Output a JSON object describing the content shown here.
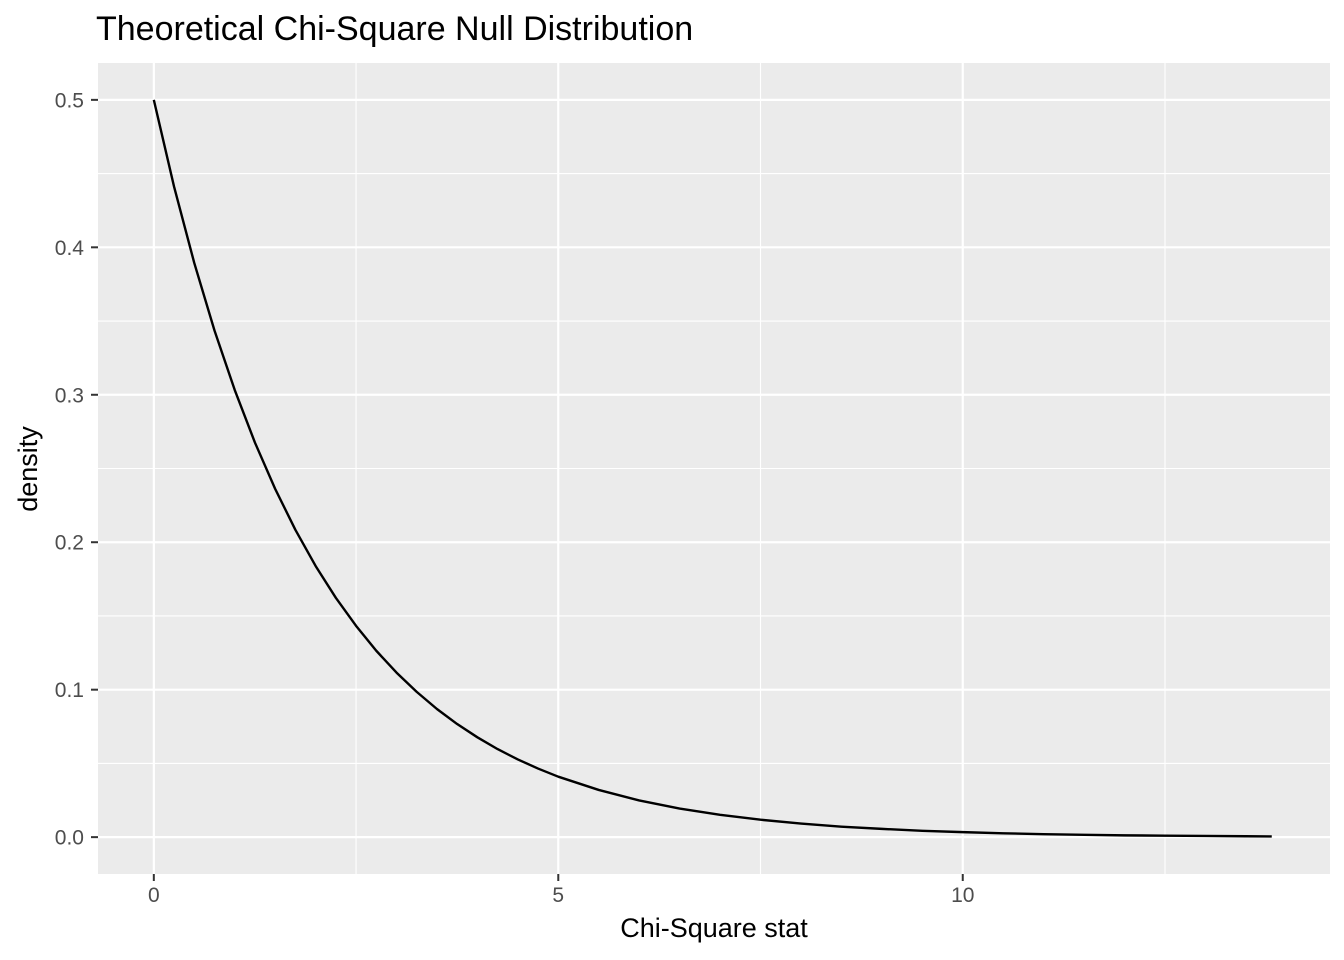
{
  "chart_data": {
    "type": "line",
    "title": "Theoretical Chi-Square Null Distribution",
    "xlabel": "Chi-Square stat",
    "ylabel": "density",
    "xlim": [
      -0.69,
      14.54
    ],
    "ylim": [
      -0.025,
      0.525
    ],
    "x_ticks": [
      0,
      5,
      10
    ],
    "x_tick_labels": [
      "0",
      "5",
      "10"
    ],
    "y_ticks": [
      0.0,
      0.1,
      0.2,
      0.3,
      0.4,
      0.5
    ],
    "y_tick_labels": [
      "0.0",
      "0.1",
      "0.2",
      "0.3",
      "0.4",
      "0.5"
    ],
    "x_minor_ticks": [
      2.5,
      7.5,
      12.5
    ],
    "y_minor_ticks": [
      0.05,
      0.15,
      0.25,
      0.35,
      0.45
    ],
    "grid": true,
    "panel_background": "#ebebeb",
    "grid_color": "#ffffff",
    "line_color": "#000000",
    "series": [
      {
        "x": [
          0,
          0.25,
          0.5,
          0.75,
          1,
          1.25,
          1.5,
          1.75,
          2,
          2.25,
          2.5,
          2.75,
          3,
          3.25,
          3.5,
          3.75,
          4,
          4.25,
          4.5,
          4.75,
          5,
          5.5,
          6,
          6.5,
          7,
          7.5,
          8,
          8.5,
          9,
          9.5,
          10,
          10.5,
          11,
          11.5,
          12,
          12.5,
          13,
          13.5,
          13.82
        ],
        "values": [
          0.5,
          0.4412,
          0.3894,
          0.3436,
          0.3033,
          0.2676,
          0.2362,
          0.2084,
          0.1839,
          0.1623,
          0.1433,
          0.1264,
          0.1116,
          0.0985,
          0.0869,
          0.0767,
          0.0677,
          0.0597,
          0.0527,
          0.0465,
          0.041,
          0.032,
          0.0249,
          0.0194,
          0.0151,
          0.0118,
          0.0092,
          0.0071,
          0.0056,
          0.0043,
          0.0034,
          0.0026,
          0.002,
          0.0016,
          0.0012,
          0.001,
          0.0008,
          0.0006,
          0.0005
        ]
      }
    ]
  }
}
